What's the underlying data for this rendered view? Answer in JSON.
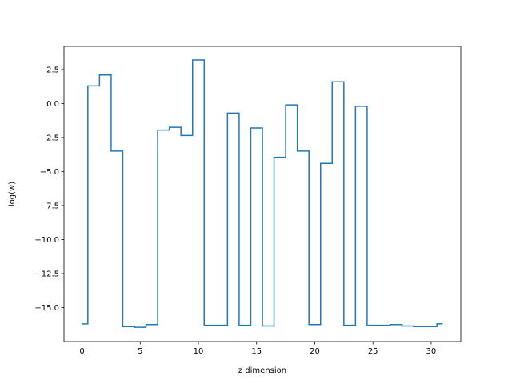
{
  "chart_data": {
    "type": "line",
    "drawstyle": "steps-mid",
    "xlabel": "z dimension",
    "ylabel": "log(w)",
    "xlim": [
      -1.55,
      32.55
    ],
    "ylim": [
      -17.5,
      4.2
    ],
    "xticks": [
      0,
      5,
      10,
      15,
      20,
      25,
      30
    ],
    "yticks": [
      -15.0,
      -12.5,
      -10.0,
      -7.5,
      -5.0,
      -2.5,
      0.0,
      2.5
    ],
    "xtick_labels": [
      "0",
      "5",
      "10",
      "15",
      "20",
      "25",
      "30"
    ],
    "ytick_labels": [
      "−15.0",
      "−12.5",
      "−10.0",
      "−7.5",
      "−5.0",
      "−2.5",
      "0.0",
      "2.5"
    ],
    "grid": false,
    "series": [
      {
        "color": "#1f77b4",
        "x": [
          0,
          1,
          2,
          3,
          4,
          5,
          6,
          7,
          8,
          9,
          10,
          11,
          12,
          13,
          14,
          15,
          16,
          17,
          18,
          19,
          20,
          21,
          22,
          23,
          24,
          25,
          26,
          27,
          28,
          29,
          30,
          31
        ],
        "y": [
          -16.2,
          1.3,
          2.1,
          -3.5,
          -16.4,
          -16.45,
          -16.25,
          -1.95,
          -1.75,
          -2.35,
          3.2,
          -16.3,
          -16.3,
          -0.7,
          -16.3,
          -1.8,
          -16.35,
          -3.95,
          -0.1,
          -3.5,
          -16.25,
          -4.4,
          1.6,
          -16.3,
          -0.2,
          -16.3,
          -16.3,
          -16.25,
          -16.35,
          -16.4,
          -16.4,
          -16.2
        ]
      }
    ]
  }
}
